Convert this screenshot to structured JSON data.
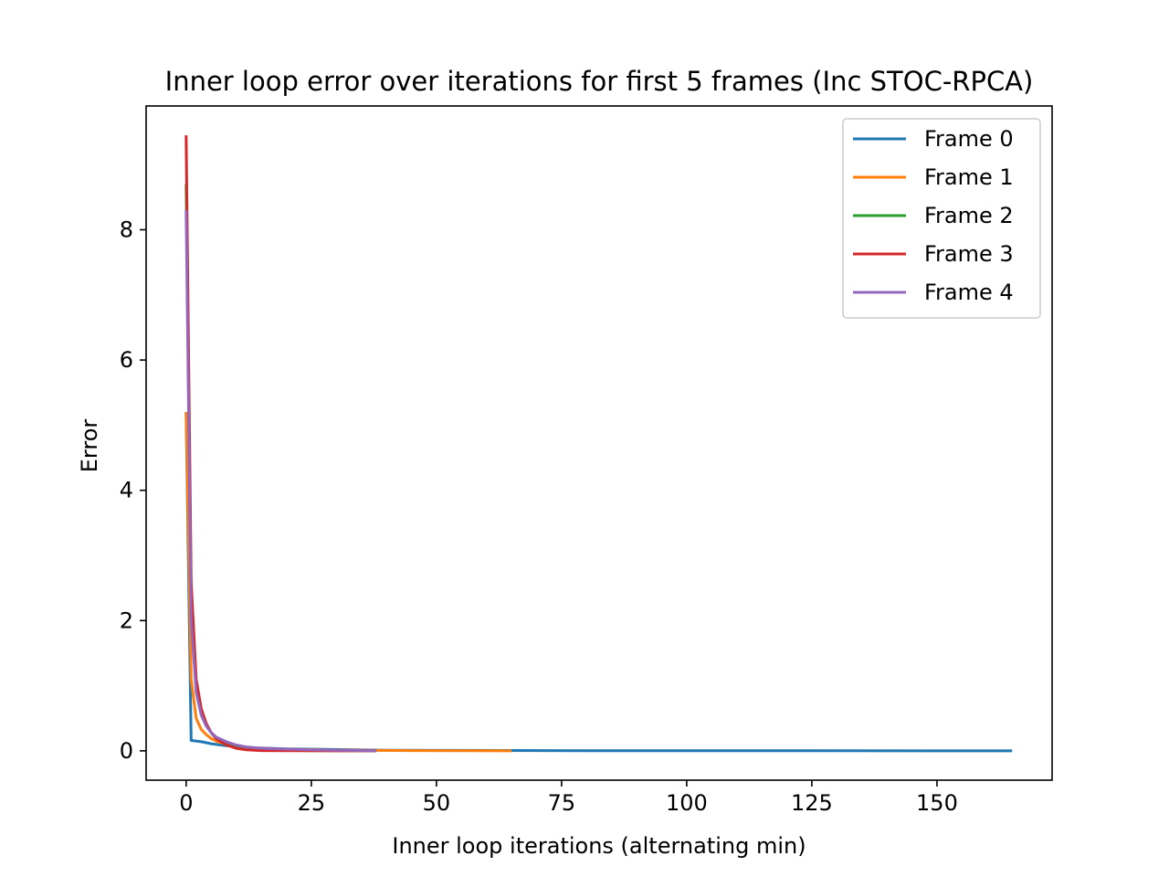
{
  "chart_data": {
    "type": "line",
    "title": "Inner loop error over iterations for first 5 frames (Inc STOC-RPCA)",
    "xlabel": "Inner loop iterations (alternating min)",
    "ylabel": "Error",
    "xlim": [
      -8,
      173
    ],
    "ylim": [
      -0.45,
      9.9
    ],
    "xticks": [
      0,
      25,
      50,
      75,
      100,
      125,
      150
    ],
    "yticks": [
      0,
      2,
      4,
      6,
      8
    ],
    "xtick_labels": [
      "0",
      "25",
      "50",
      "75",
      "100",
      "125",
      "150"
    ],
    "ytick_labels": [
      "0",
      "2",
      "4",
      "6",
      "8"
    ],
    "grid": false,
    "legend_position": "top-right",
    "series": [
      {
        "name": "Frame 0",
        "color": "#1f77b4",
        "x": [
          0,
          1,
          3,
          5,
          8,
          12,
          20,
          40,
          80,
          120,
          165
        ],
        "y": [
          5.2,
          0.16,
          0.14,
          0.11,
          0.08,
          0.05,
          0.03,
          0.01,
          0.002,
          0.001,
          0.0
        ]
      },
      {
        "name": "Frame 1",
        "color": "#ff7f0e",
        "x": [
          0,
          1,
          2,
          3,
          4,
          5,
          6,
          8,
          10,
          15,
          20,
          30,
          45,
          65
        ],
        "y": [
          5.2,
          1.1,
          0.5,
          0.33,
          0.25,
          0.19,
          0.15,
          0.1,
          0.07,
          0.04,
          0.025,
          0.012,
          0.005,
          0.0
        ]
      },
      {
        "name": "Frame 2",
        "color": "#2ca02c",
        "x": [
          0,
          1,
          2,
          3,
          4,
          5,
          6,
          8,
          10,
          14,
          18,
          25,
          38
        ],
        "y": [
          8.7,
          2.4,
          1.0,
          0.6,
          0.4,
          0.28,
          0.2,
          0.12,
          0.07,
          0.03,
          0.015,
          0.005,
          0.0
        ]
      },
      {
        "name": "Frame 3",
        "color": "#d62728",
        "x": [
          0,
          1,
          2,
          3,
          4,
          5,
          6,
          8,
          10,
          12,
          15,
          20,
          30,
          38
        ],
        "y": [
          9.45,
          2.6,
          1.1,
          0.65,
          0.42,
          0.28,
          0.19,
          0.09,
          0.04,
          0.015,
          0.005,
          0.002,
          0.0,
          0.0
        ]
      },
      {
        "name": "Frame 4",
        "color": "#9467bd",
        "x": [
          0,
          1,
          2,
          3,
          4,
          5,
          6,
          8,
          10,
          12,
          15,
          20,
          25,
          30,
          38
        ],
        "y": [
          8.3,
          2.0,
          0.9,
          0.55,
          0.38,
          0.28,
          0.21,
          0.14,
          0.09,
          0.06,
          0.04,
          0.025,
          0.015,
          0.008,
          0.003
        ]
      }
    ]
  }
}
